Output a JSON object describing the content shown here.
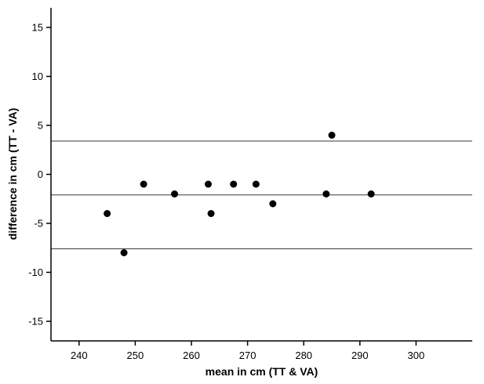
{
  "chart_data": {
    "type": "scatter",
    "title": "",
    "xlabel": "mean in cm (TT & VA)",
    "ylabel": "difference in cm (TT - VA)",
    "xlim": [
      235,
      310
    ],
    "ylim": [
      -17,
      17
    ],
    "xticks": [
      240,
      250,
      260,
      270,
      280,
      290,
      300
    ],
    "yticks": [
      -15,
      -10,
      -5,
      0,
      5,
      10,
      15
    ],
    "points": [
      [
        245,
        -4
      ],
      [
        248,
        -8
      ],
      [
        251.5,
        -1
      ],
      [
        257,
        -2
      ],
      [
        263,
        -1
      ],
      [
        263.5,
        -4
      ],
      [
        267.5,
        -1
      ],
      [
        271.5,
        -1
      ],
      [
        274.5,
        -3
      ],
      [
        284,
        -2
      ],
      [
        285,
        4
      ],
      [
        292,
        -2
      ]
    ],
    "reference_lines": [
      {
        "name": "upper-limit-of-agreement",
        "y": 3.4
      },
      {
        "name": "mean-difference",
        "y": -2.1
      },
      {
        "name": "lower-limit-of-agreement",
        "y": -7.6
      }
    ],
    "grid": false,
    "legend": null,
    "point_color": "#000000",
    "reference_line_color": "#3a3a3a",
    "axis_color": "#000000",
    "background": "#ffffff"
  }
}
